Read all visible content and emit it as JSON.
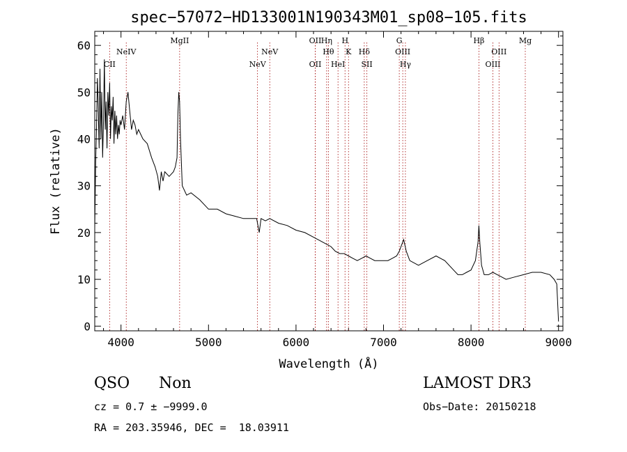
{
  "chart_data": {
    "type": "line",
    "title": "spec−57072−HD133001N190343M01_sp08−105.fits",
    "xlabel": "Wavelength (Å)",
    "ylabel": "Flux (relative)",
    "xlim": [
      3700,
      9050
    ],
    "ylim": [
      -1,
      63
    ],
    "x_ticks": [
      4000,
      5000,
      6000,
      7000,
      8000,
      9000
    ],
    "y_ticks": [
      0,
      10,
      20,
      30,
      40,
      50,
      60
    ],
    "grid": false,
    "series": [
      {
        "name": "flux",
        "x": [
          3700,
          3710,
          3720,
          3730,
          3740,
          3750,
          3760,
          3770,
          3780,
          3790,
          3800,
          3810,
          3820,
          3830,
          3840,
          3850,
          3860,
          3870,
          3880,
          3890,
          3900,
          3910,
          3920,
          3930,
          3940,
          3950,
          3960,
          3970,
          3980,
          3990,
          4000,
          4020,
          4040,
          4060,
          4080,
          4100,
          4120,
          4140,
          4160,
          4180,
          4200,
          4250,
          4300,
          4350,
          4390,
          4420,
          4440,
          4460,
          4480,
          4500,
          4550,
          4600,
          4620,
          4640,
          4650,
          4660,
          4670,
          4680,
          4700,
          4750,
          4800,
          4900,
          5000,
          5100,
          5200,
          5300,
          5400,
          5500,
          5550,
          5580,
          5600,
          5650,
          5700,
          5800,
          5900,
          6000,
          6100,
          6200,
          6300,
          6400,
          6450,
          6500,
          6550,
          6600,
          6650,
          6700,
          6750,
          6800,
          6850,
          6900,
          6950,
          7000,
          7050,
          7100,
          7150,
          7180,
          7200,
          7230,
          7260,
          7300,
          7400,
          7500,
          7600,
          7700,
          7800,
          7850,
          7900,
          7950,
          8000,
          8050,
          8080,
          8090,
          8100,
          8120,
          8150,
          8200,
          8250,
          8300,
          8350,
          8400,
          8500,
          8600,
          8700,
          8800,
          8900,
          8950,
          8980,
          9000
        ],
        "y": [
          21,
          35,
          42,
          53,
          47,
          38,
          55,
          40,
          50,
          36,
          44,
          57,
          42,
          48,
          38,
          50,
          45,
          52,
          40,
          47,
          44,
          49,
          39,
          46,
          41,
          45,
          40,
          43,
          41,
          44,
          43,
          45,
          42,
          48,
          50,
          46,
          42,
          44,
          43,
          41,
          42,
          40,
          39,
          36,
          34,
          32,
          29,
          33,
          31,
          33,
          32,
          33,
          34,
          36,
          45,
          50,
          48,
          40,
          30,
          28,
          28.5,
          27,
          25,
          25,
          24,
          23.5,
          23,
          23,
          23,
          20,
          23,
          22.5,
          23,
          22,
          21.5,
          20.5,
          20,
          19,
          18,
          17,
          16,
          15.5,
          15.5,
          15,
          14.5,
          14,
          14.5,
          15,
          14.5,
          14,
          14,
          14,
          14,
          14.5,
          15,
          16,
          17,
          18.5,
          16,
          14,
          13,
          14,
          15,
          14,
          12,
          11,
          11,
          11.5,
          12,
          14,
          18,
          21.5,
          18,
          13,
          11,
          11,
          11.5,
          11,
          10.5,
          10,
          10.5,
          11,
          11.5,
          11.5,
          11,
          10,
          9,
          1
        ]
      }
    ],
    "lines": [
      {
        "x": 3870,
        "label": "CII",
        "row": 3
      },
      {
        "x": 4060,
        "label": "NeIV",
        "row": 1
      },
      {
        "x": 4670,
        "label": "MgII",
        "row": 0
      },
      {
        "x": 5560,
        "label": "NeV",
        "row": 3
      },
      {
        "x": 5700,
        "label": "NeV",
        "row": 1
      },
      {
        "x": 6220,
        "label": "OII",
        "row": 0
      },
      {
        "x": 6220,
        "label": "OII",
        "row": 3
      },
      {
        "x": 6350,
        "label": "Hη",
        "row": 0
      },
      {
        "x": 6370,
        "label": "Hθ",
        "row": 1
      },
      {
        "x": 6480,
        "label": "HeI",
        "row": 3
      },
      {
        "x": 6560,
        "label": "H",
        "row": 0
      },
      {
        "x": 6600,
        "label": "K",
        "row": 1
      },
      {
        "x": 6780,
        "label": "Hδ",
        "row": 1
      },
      {
        "x": 6810,
        "label": "SII",
        "row": 3
      },
      {
        "x": 7180,
        "label": "G",
        "row": 0
      },
      {
        "x": 7220,
        "label": "OIII",
        "row": 1
      },
      {
        "x": 7250,
        "label": "Hγ",
        "row": 3
      },
      {
        "x": 8090,
        "label": "Hβ",
        "row": 0
      },
      {
        "x": 8250,
        "label": "OIII",
        "row": 3
      },
      {
        "x": 8320,
        "label": "OIII",
        "row": 1
      },
      {
        "x": 8620,
        "label": "Mg",
        "row": 0
      }
    ]
  },
  "info": {
    "class": "QSO",
    "subclass": "Non",
    "cz": "cz = 0.7 ± −9999.0",
    "radec": "RA = 203.35946, DEC =  18.03911",
    "survey": "LAMOST DR3",
    "obsdate": "Obs−Date: 20150218"
  }
}
